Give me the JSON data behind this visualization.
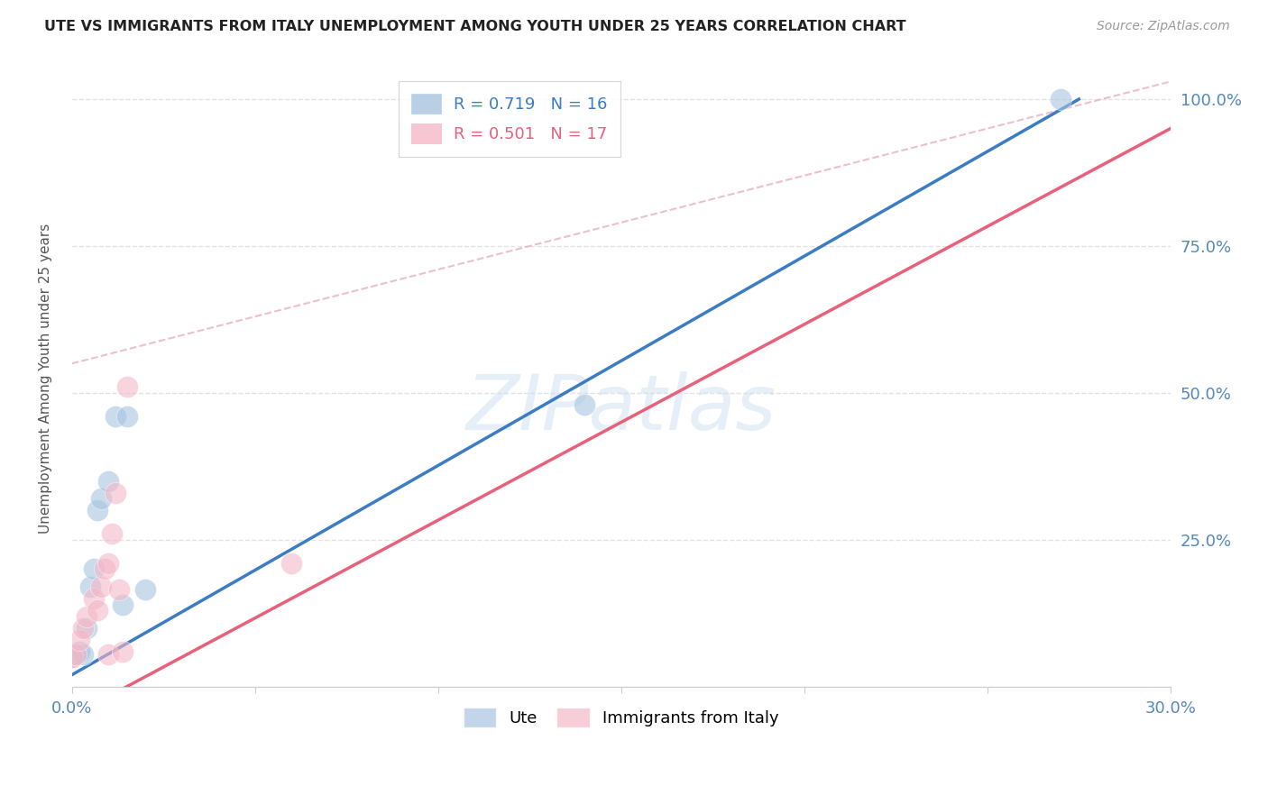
{
  "title": "UTE VS IMMIGRANTS FROM ITALY UNEMPLOYMENT AMONG YOUTH UNDER 25 YEARS CORRELATION CHART",
  "source": "Source: ZipAtlas.com",
  "ylabel_left": "Unemployment Among Youth under 25 years",
  "ute_R": 0.719,
  "ute_N": 16,
  "italy_R": 0.501,
  "italy_N": 17,
  "ute_color": "#A8C4E0",
  "ute_line_color": "#3B7CC4",
  "italy_color": "#F4B8C8",
  "italy_line_color": "#E8607A",
  "ref_line_color": "#E8A0B0",
  "watermark": "ZIPatlas",
  "bg_color": "#FFFFFF",
  "grid_color": "#DDDDDD",
  "xlim": [
    0.0,
    0.3
  ],
  "ylim": [
    0.0,
    1.05
  ],
  "ute_x": [
    0.0,
    0.001,
    0.002,
    0.003,
    0.004,
    0.005,
    0.006,
    0.007,
    0.008,
    0.01,
    0.012,
    0.014,
    0.015,
    0.02,
    0.14,
    0.27
  ],
  "ute_y": [
    0.05,
    0.055,
    0.06,
    0.055,
    0.1,
    0.17,
    0.2,
    0.3,
    0.32,
    0.35,
    0.46,
    0.14,
    0.46,
    0.165,
    0.48,
    1.0
  ],
  "italy_x": [
    0.0,
    0.001,
    0.002,
    0.003,
    0.004,
    0.006,
    0.007,
    0.008,
    0.009,
    0.01,
    0.011,
    0.012,
    0.013,
    0.015,
    0.06,
    0.01,
    0.014
  ],
  "italy_y": [
    0.05,
    0.055,
    0.08,
    0.1,
    0.12,
    0.15,
    0.13,
    0.17,
    0.2,
    0.21,
    0.26,
    0.33,
    0.165,
    0.51,
    0.21,
    0.055,
    0.06
  ],
  "tick_color": "#5588BB",
  "label_color": "#555555",
  "spine_color": "#CCCCCC"
}
